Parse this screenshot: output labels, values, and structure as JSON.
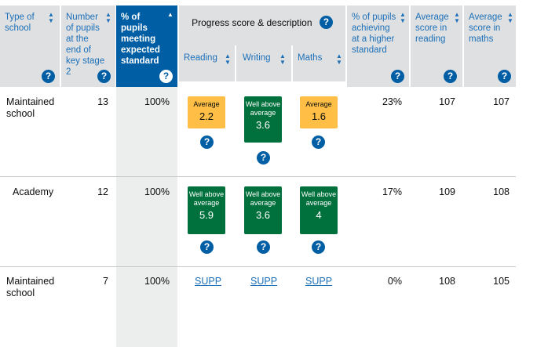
{
  "headers": {
    "type_of_school": "Type of school",
    "pupils": "Number of pupils at the end of key stage 2",
    "expected": "% of pupils meeting expected standard",
    "progress": "Progress score & description",
    "reading": "Reading",
    "writing": "Writing",
    "maths": "Maths",
    "higher": "% of pupils achieving at a higher standard",
    "avg_reading": "Average score in reading",
    "avg_maths": "Average score in maths"
  },
  "icons": {
    "sort": "sort-arrows-icon",
    "help": "question-mark-icon",
    "sorted_asc": "sort-ascending-icon"
  },
  "colors": {
    "accent": "#005ea5",
    "average": "#ffbf47",
    "well_above": "#00703c",
    "header_bg": "#dee0e2"
  },
  "rows": [
    {
      "type": "Maintained school",
      "pupils": "13",
      "expected": "100%",
      "reading": {
        "label": "Average",
        "value": "2.2"
      },
      "writing": {
        "label": "Well above average",
        "value": "3.6"
      },
      "maths": {
        "label": "Average",
        "value": "1.6"
      },
      "higher": "23%",
      "avg_reading": "107",
      "avg_maths": "107"
    },
    {
      "type": "Academy",
      "pupils": "12",
      "expected": "100%",
      "reading": {
        "label": "Well above average",
        "value": "5.9"
      },
      "writing": {
        "label": "Well above average",
        "value": "3.6"
      },
      "maths": {
        "label": "Well above average",
        "value": "4"
      },
      "higher": "17%",
      "avg_reading": "109",
      "avg_maths": "108"
    },
    {
      "type": "Maintained school",
      "pupils": "7",
      "expected": "100%",
      "reading": "SUPP",
      "writing": "SUPP",
      "maths": "SUPP",
      "higher": "0%",
      "avg_reading": "108",
      "avg_maths": "105"
    }
  ]
}
